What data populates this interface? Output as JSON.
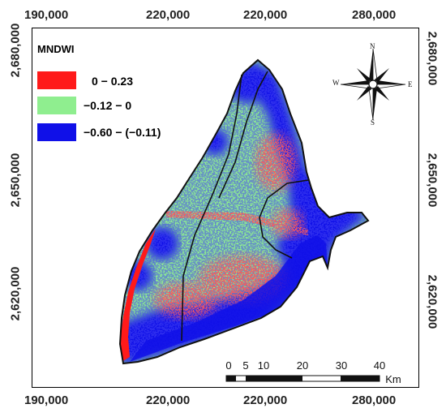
{
  "map": {
    "coords": {
      "top": [
        "190,000",
        "220,000",
        "220,000",
        "280,000"
      ],
      "bottom": [
        "190,000",
        "220,000",
        "220,000",
        "280,000"
      ],
      "left": [
        "2,680,000",
        "2,650,000",
        "2,620,000"
      ],
      "right": [
        "2,680,000",
        "2,650,000",
        "2,620,000"
      ]
    },
    "legend": {
      "title": "MNDWI",
      "items": [
        {
          "label": "0 − 0.23",
          "color": "#ff1a1a"
        },
        {
          "label": "−0.12 − 0",
          "color": "#8fee8f"
        },
        {
          "label": "−0.60 − (−0.11)",
          "color": "#1010e8"
        }
      ]
    },
    "north_arrow": {
      "n": "N",
      "s": "S",
      "e": "E",
      "w": "W"
    },
    "scale_bar": {
      "ticks": [
        "0",
        "5",
        "10",
        "20",
        "30",
        "40"
      ],
      "unit": "Km"
    },
    "colors": {
      "high": "#ff1a1a",
      "mid": "#8fee8f",
      "low": "#1010e8"
    }
  }
}
